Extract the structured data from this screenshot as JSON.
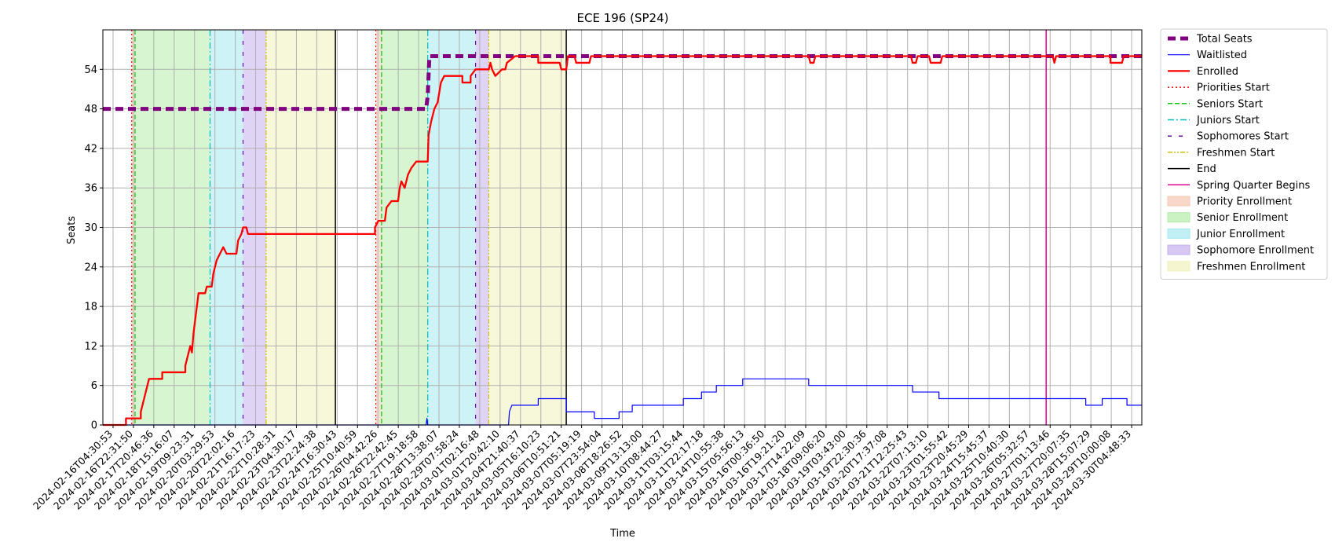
{
  "chart_data": {
    "type": "line",
    "title": "ECE 196 (SP24)",
    "xlabel": "Time",
    "ylabel": "Seats",
    "ylim": [
      0,
      60
    ],
    "y_ticks": [
      0,
      6,
      12,
      18,
      24,
      30,
      36,
      42,
      48,
      54
    ],
    "grid": true,
    "legend_position": "outside-right",
    "x_tick_labels": [
      "2024-02-16T04:30:53",
      "2024-02-16T22:31:50",
      "2024-02-17T20:46:36",
      "2024-02-18T15:16:07",
      "2024-02-19T09:23:31",
      "2024-02-20T03:29:53",
      "2024-02-20T22:02:16",
      "2024-02-21T16:17:23",
      "2024-02-22T10:28:31",
      "2024-02-23T04:30:17",
      "2024-02-23T22:24:38",
      "2024-02-24T16:30:43",
      "2024-02-25T10:40:59",
      "2024-02-26T04:42:26",
      "2024-02-26T22:42:45",
      "2024-02-27T19:18:58",
      "2024-02-28T13:38:07",
      "2024-02-29T07:58:24",
      "2024-03-01T02:16:48",
      "2024-03-01T20:42:10",
      "2024-03-04T21:40:37",
      "2024-03-05T16:10:23",
      "2024-03-06T10:51:21",
      "2024-03-07T05:19:19",
      "2024-03-07T23:54:04",
      "2024-03-08T18:26:52",
      "2024-03-09T13:13:00",
      "2024-03-10T08:44:27",
      "2024-03-11T03:15:44",
      "2024-03-11T22:17:18",
      "2024-03-14T10:55:38",
      "2024-03-15T05:56:13",
      "2024-03-16T00:36:50",
      "2024-03-16T19:21:20",
      "2024-03-17T14:22:09",
      "2024-03-18T09:06:20",
      "2024-03-19T03:43:00",
      "2024-03-19T22:30:36",
      "2024-03-20T17:37:08",
      "2024-03-21T12:25:43",
      "2024-03-22T07:13:10",
      "2024-03-23T01:55:42",
      "2024-03-23T20:45:29",
      "2024-03-24T15:45:37",
      "2024-03-25T10:40:30",
      "2024-03-26T05:32:57",
      "2024-03-27T01:13:46",
      "2024-03-27T20:07:35",
      "2024-03-28T15:07:29",
      "2024-03-29T10:00:08",
      "2024-03-30T04:48:33"
    ],
    "x_range": [
      0,
      63
    ],
    "series": [
      {
        "name": "Total Seats",
        "color": "#800080",
        "style": "dashed-thick",
        "points": [
          [
            0,
            48
          ],
          [
            19.6,
            48
          ],
          [
            19.7,
            50
          ],
          [
            19.8,
            56
          ],
          [
            63,
            56
          ]
        ]
      },
      {
        "name": "Waitlisted",
        "color": "#0000ff",
        "style": "solid-thin",
        "points": [
          [
            0,
            0
          ],
          [
            19.6,
            0
          ],
          [
            19.65,
            1
          ],
          [
            19.7,
            0
          ],
          [
            24.6,
            0
          ],
          [
            24.65,
            2
          ],
          [
            24.8,
            3
          ],
          [
            26.4,
            3
          ],
          [
            26.4,
            4
          ],
          [
            28.1,
            4
          ],
          [
            28.1,
            2
          ],
          [
            29.8,
            2
          ],
          [
            29.8,
            1
          ],
          [
            31.3,
            1
          ],
          [
            31.3,
            2
          ],
          [
            32.1,
            2
          ],
          [
            32.1,
            3
          ],
          [
            35.2,
            3
          ],
          [
            35.2,
            4
          ],
          [
            36.3,
            4
          ],
          [
            36.3,
            5
          ],
          [
            37.2,
            5
          ],
          [
            37.2,
            6
          ],
          [
            38.8,
            6
          ],
          [
            38.8,
            7
          ],
          [
            42.8,
            7
          ],
          [
            42.8,
            6
          ],
          [
            49.1,
            6
          ],
          [
            49.1,
            5
          ],
          [
            50.7,
            5
          ],
          [
            50.7,
            4
          ],
          [
            59.6,
            4
          ],
          [
            59.6,
            3
          ],
          [
            60.6,
            3
          ],
          [
            60.6,
            4
          ],
          [
            62.1,
            4
          ],
          [
            62.1,
            3
          ],
          [
            63,
            3
          ]
        ]
      },
      {
        "name": "Enrolled",
        "color": "#ff0000",
        "style": "solid-thick",
        "points": [
          [
            0,
            0
          ],
          [
            1.4,
            0
          ],
          [
            1.4,
            1
          ],
          [
            2.3,
            1
          ],
          [
            2.3,
            2
          ],
          [
            2.4,
            3
          ],
          [
            2.5,
            4
          ],
          [
            2.6,
            5
          ],
          [
            2.7,
            6
          ],
          [
            2.8,
            7
          ],
          [
            3.6,
            7
          ],
          [
            3.6,
            8
          ],
          [
            5.0,
            8
          ],
          [
            5.0,
            9
          ],
          [
            5.2,
            11
          ],
          [
            5.3,
            12
          ],
          [
            5.4,
            11
          ],
          [
            5.5,
            14
          ],
          [
            5.7,
            18
          ],
          [
            5.8,
            20
          ],
          [
            6.2,
            20
          ],
          [
            6.3,
            21
          ],
          [
            6.6,
            21
          ],
          [
            6.7,
            23
          ],
          [
            6.8,
            24
          ],
          [
            6.9,
            25
          ],
          [
            7.1,
            26
          ],
          [
            7.3,
            27
          ],
          [
            7.5,
            26
          ],
          [
            8.1,
            26
          ],
          [
            8.2,
            28
          ],
          [
            8.4,
            29
          ],
          [
            8.5,
            30
          ],
          [
            8.7,
            30
          ],
          [
            8.8,
            29
          ],
          [
            16.5,
            29
          ],
          [
            16.5,
            30
          ],
          [
            16.7,
            31
          ],
          [
            17.1,
            31
          ],
          [
            17.2,
            33
          ],
          [
            17.5,
            34
          ],
          [
            17.9,
            34
          ],
          [
            18.0,
            36
          ],
          [
            18.1,
            37
          ],
          [
            18.3,
            36
          ],
          [
            18.5,
            38
          ],
          [
            18.7,
            39
          ],
          [
            19.0,
            40
          ],
          [
            19.7,
            40
          ],
          [
            19.75,
            44
          ],
          [
            19.9,
            46
          ],
          [
            20.1,
            48
          ],
          [
            20.3,
            49
          ],
          [
            20.5,
            52
          ],
          [
            20.7,
            53
          ],
          [
            21.8,
            53
          ],
          [
            21.8,
            52
          ],
          [
            22.3,
            52
          ],
          [
            22.3,
            53
          ],
          [
            22.6,
            54
          ],
          [
            23.4,
            54
          ],
          [
            23.5,
            55
          ],
          [
            23.6,
            54
          ],
          [
            23.8,
            53
          ],
          [
            24.2,
            54
          ],
          [
            24.4,
            54
          ],
          [
            24.5,
            55
          ],
          [
            25.0,
            56
          ],
          [
            26.4,
            56
          ],
          [
            26.4,
            55
          ],
          [
            27.7,
            55
          ],
          [
            27.8,
            54
          ],
          [
            28.1,
            54
          ],
          [
            28.2,
            56
          ],
          [
            28.6,
            56
          ],
          [
            28.7,
            55
          ],
          [
            29.5,
            55
          ],
          [
            29.6,
            56
          ],
          [
            42.8,
            56
          ],
          [
            42.9,
            55
          ],
          [
            43.1,
            55
          ],
          [
            43.2,
            56
          ],
          [
            49.0,
            56
          ],
          [
            49.1,
            55
          ],
          [
            49.3,
            55
          ],
          [
            49.4,
            56
          ],
          [
            50.1,
            56
          ],
          [
            50.2,
            55
          ],
          [
            50.8,
            55
          ],
          [
            50.9,
            56
          ],
          [
            57.6,
            56
          ],
          [
            57.7,
            55
          ],
          [
            57.8,
            56
          ],
          [
            61.1,
            56
          ],
          [
            61.1,
            55
          ],
          [
            61.8,
            55
          ],
          [
            61.9,
            56
          ],
          [
            63,
            56
          ]
        ]
      }
    ],
    "markers": [
      {
        "name": "Priorities Start",
        "color": "#ff0000",
        "style": "dotted",
        "x": [
          1.75,
          16.55
        ]
      },
      {
        "name": "Seniors Start",
        "color": "#00cc00",
        "style": "dashed",
        "x": [
          1.95,
          16.9
        ]
      },
      {
        "name": "Juniors Start",
        "color": "#00bfbf",
        "style": "dashdot",
        "x": [
          6.5,
          19.7
        ]
      },
      {
        "name": "Sophomores Start",
        "color": "#6a0dad",
        "style": "loosedash",
        "x": [
          8.5,
          22.6
        ]
      },
      {
        "name": "Freshmen Start",
        "color": "#d4c200",
        "style": "dashdotdot",
        "x": [
          9.9,
          23.4
        ]
      },
      {
        "name": "End",
        "color": "#000000",
        "style": "solid",
        "x": [
          14.1,
          28.1
        ]
      },
      {
        "name": "Spring Quarter Begins",
        "color": "#e0009a",
        "style": "solid",
        "x": [
          57.2
        ]
      }
    ],
    "periods": [
      {
        "name": "Priority Enrollment",
        "color": "#f4c7b0",
        "ranges": [
          [
            1.75,
            1.95
          ],
          [
            16.55,
            16.9
          ]
        ]
      },
      {
        "name": "Senior Enrollment",
        "color": "#b5ecaa",
        "ranges": [
          [
            1.95,
            6.5
          ],
          [
            16.9,
            19.7
          ]
        ]
      },
      {
        "name": "Junior Enrollment",
        "color": "#a5eaf0",
        "ranges": [
          [
            6.5,
            8.5
          ],
          [
            19.7,
            22.6
          ]
        ]
      },
      {
        "name": "Sophomore Enrollment",
        "color": "#c5b0ec",
        "ranges": [
          [
            8.5,
            9.9
          ],
          [
            22.6,
            23.4
          ]
        ]
      },
      {
        "name": "Freshmen Enrollment",
        "color": "#f1f1bb",
        "ranges": [
          [
            9.9,
            14.1
          ],
          [
            23.4,
            28.1
          ]
        ]
      }
    ]
  }
}
